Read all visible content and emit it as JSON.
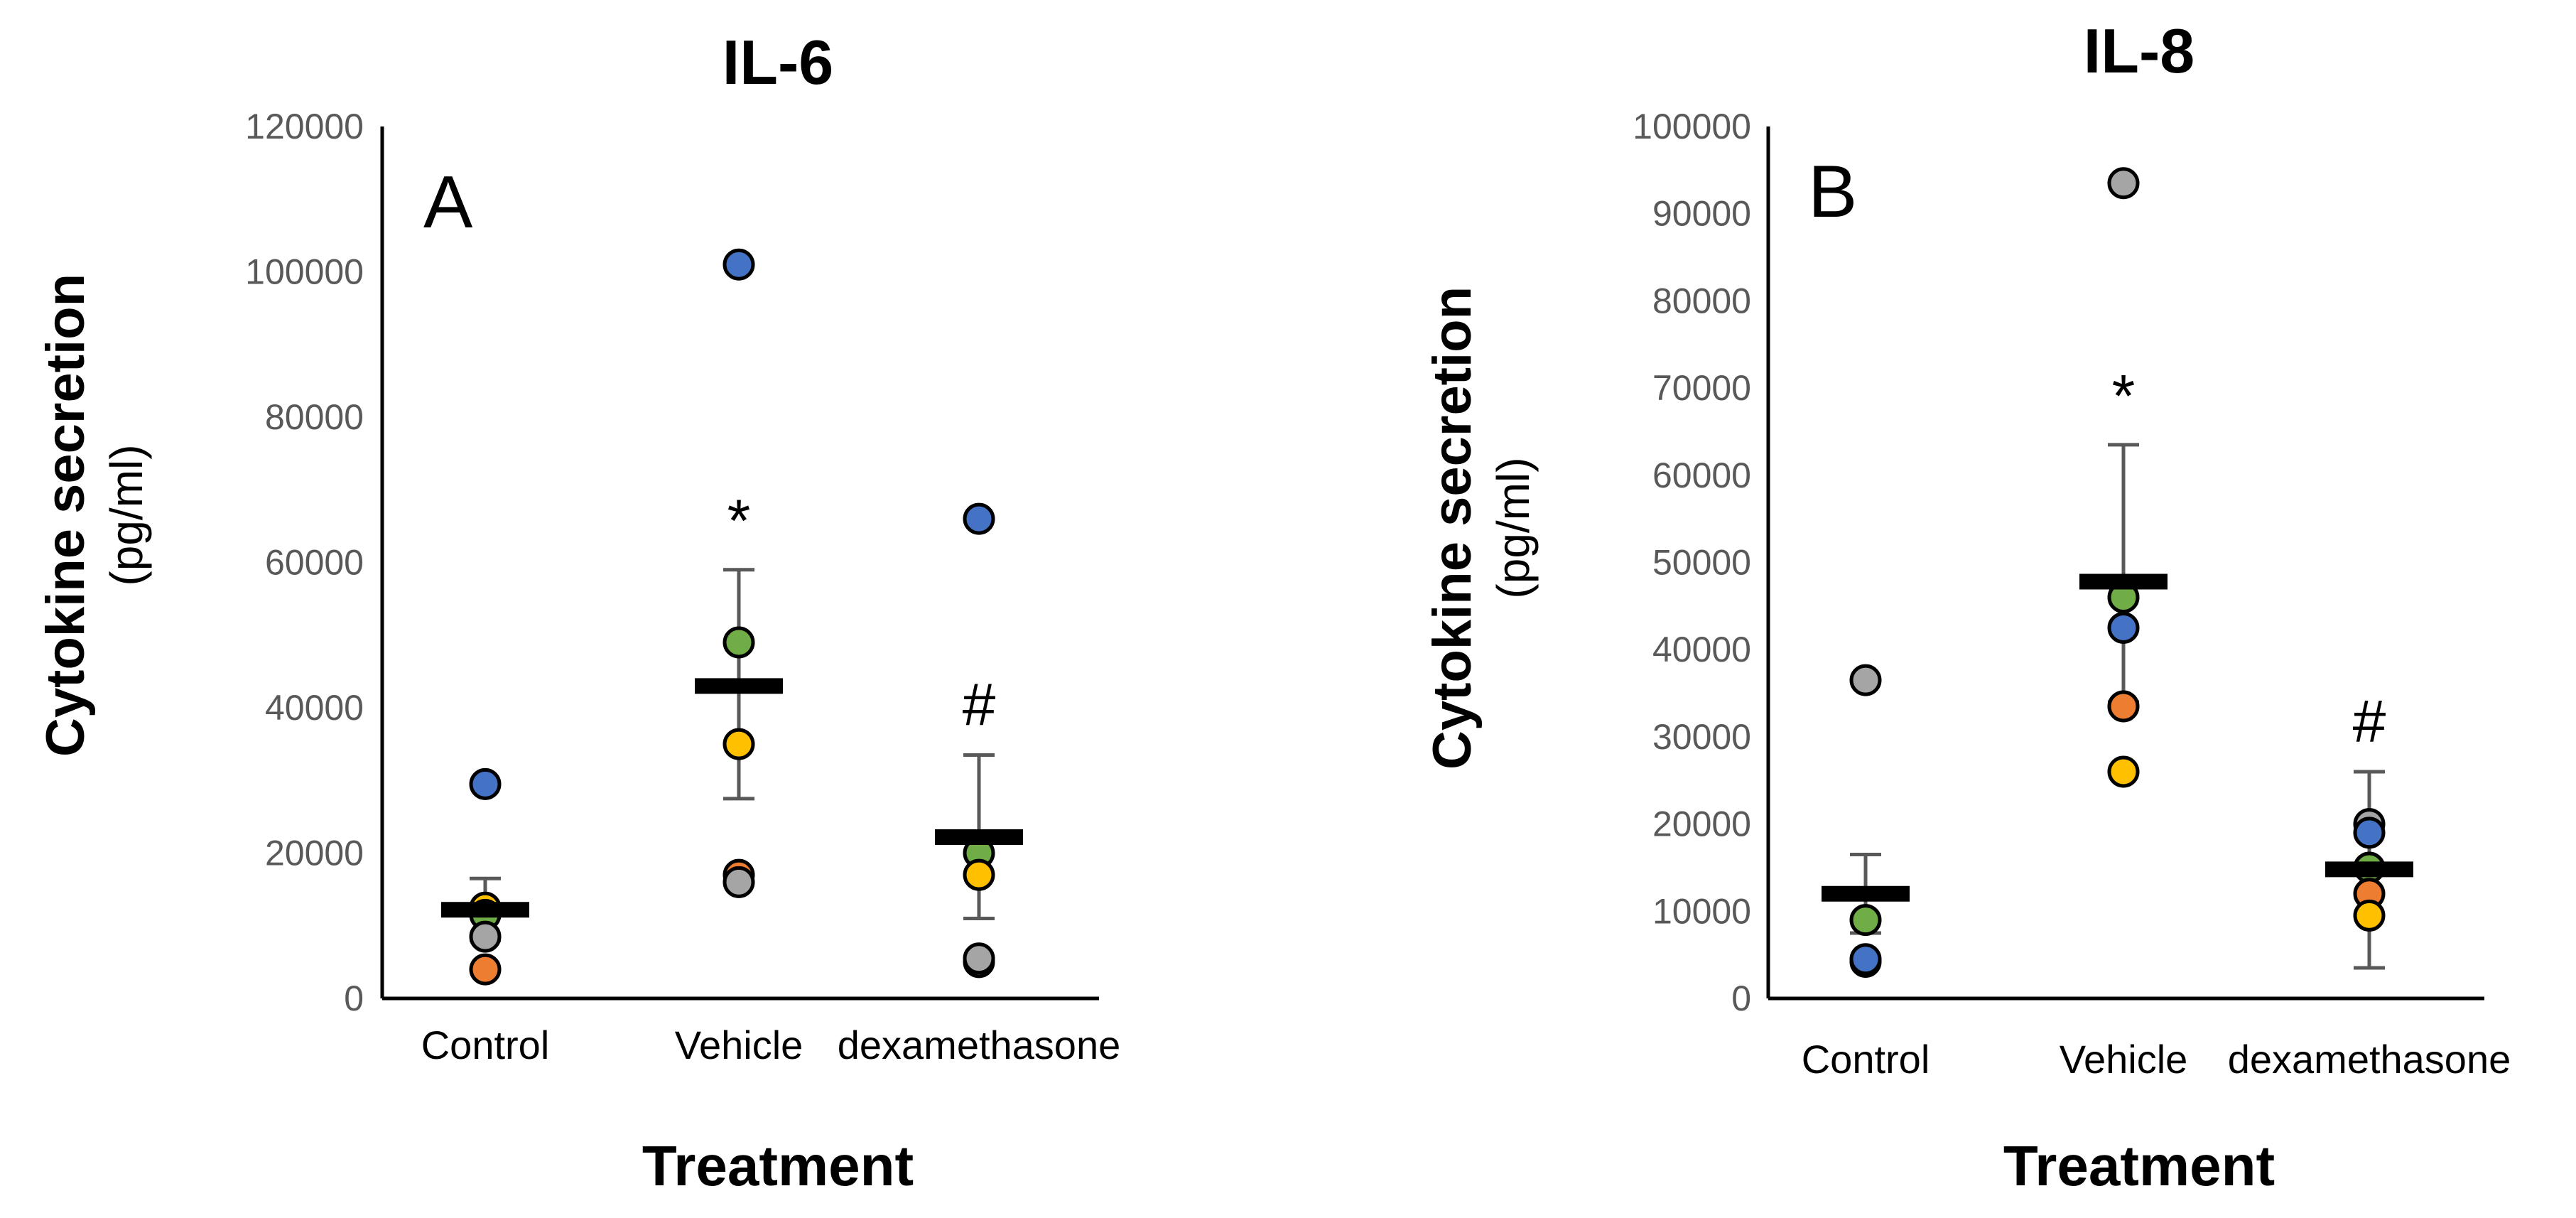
{
  "chart_data": [
    {
      "type": "scatter",
      "panel": "A",
      "title": "IL-6",
      "ylabel_bold": "Cytokine secretion",
      "ylabel_unit": "(pg/ml)",
      "xlabel": "Treatment",
      "ylim": [
        0,
        120000
      ],
      "yticks": [
        "0",
        "20000",
        "40000",
        "60000",
        "80000",
        "100000",
        "120000"
      ],
      "categories": [
        "Control",
        "Vehicle",
        "dexamethasone"
      ],
      "colors": {
        "blue": "#4472C4",
        "green": "#70AD47",
        "yellow": "#FFC000",
        "orange": "#ED7D31",
        "gray": "#A5A5A5"
      },
      "groups": [
        {
          "category": "Control",
          "mean": 12200,
          "err_high": 16500,
          "err_low": 8000,
          "sig": "",
          "points": [
            {
              "v": 29500,
              "c": "blue"
            },
            {
              "v": 12500,
              "c": "yellow"
            },
            {
              "v": 11500,
              "c": "green"
            },
            {
              "v": 8500,
              "c": "gray"
            },
            {
              "v": 4000,
              "c": "orange"
            }
          ]
        },
        {
          "category": "Vehicle",
          "mean": 43000,
          "err_high": 59000,
          "err_low": 27500,
          "sig": "*",
          "points": [
            {
              "v": 101000,
              "c": "blue"
            },
            {
              "v": 49000,
              "c": "green"
            },
            {
              "v": 35000,
              "c": "yellow"
            },
            {
              "v": 17000,
              "c": "orange"
            },
            {
              "v": 16000,
              "c": "gray"
            }
          ]
        },
        {
          "category": "dexamethasone",
          "mean": 22200,
          "err_high": 33500,
          "err_low": 11000,
          "sig": "#",
          "points": [
            {
              "v": 66000,
              "c": "blue"
            },
            {
              "v": 20000,
              "c": "green"
            },
            {
              "v": 17000,
              "c": "yellow"
            },
            {
              "v": 5000,
              "c": "orange"
            },
            {
              "v": 5500,
              "c": "gray"
            }
          ]
        }
      ]
    },
    {
      "type": "scatter",
      "panel": "B",
      "title": "IL-8",
      "ylabel_bold": "Cytokine secretion",
      "ylabel_unit": "(pg/ml)",
      "xlabel": "Treatment",
      "ylim": [
        0,
        100000
      ],
      "yticks": [
        "0",
        "10000",
        "20000",
        "30000",
        "40000",
        "50000",
        "60000",
        "70000",
        "80000",
        "90000",
        "100000"
      ],
      "categories": [
        "Control",
        "Vehicle",
        "dexamethasone"
      ],
      "colors": {
        "blue": "#4472C4",
        "green": "#70AD47",
        "yellow": "#FFC000",
        "orange": "#ED7D31",
        "gray": "#A5A5A5"
      },
      "groups": [
        {
          "category": "Control",
          "mean": 12000,
          "err_high": 16500,
          "err_low": 7500,
          "sig": "",
          "points": [
            {
              "v": 36500,
              "c": "gray"
            },
            {
              "v": 9000,
              "c": "green"
            },
            {
              "v": 4200,
              "c": "orange"
            },
            {
              "v": 4500,
              "c": "blue"
            }
          ]
        },
        {
          "category": "Vehicle",
          "mean": 47800,
          "err_high": 63500,
          "err_low": 34000,
          "sig": "*",
          "points": [
            {
              "v": 93500,
              "c": "gray"
            },
            {
              "v": 46000,
              "c": "green"
            },
            {
              "v": 42500,
              "c": "blue"
            },
            {
              "v": 33500,
              "c": "orange"
            },
            {
              "v": 26000,
              "c": "yellow"
            }
          ]
        },
        {
          "category": "dexamethasone",
          "mean": 14800,
          "err_high": 26000,
          "err_low": 3500,
          "sig": "#",
          "points": [
            {
              "v": 20000,
              "c": "gray"
            },
            {
              "v": 19000,
              "c": "blue"
            },
            {
              "v": 15000,
              "c": "green"
            },
            {
              "v": 12000,
              "c": "orange"
            },
            {
              "v": 9500,
              "c": "yellow"
            }
          ]
        }
      ]
    }
  ]
}
